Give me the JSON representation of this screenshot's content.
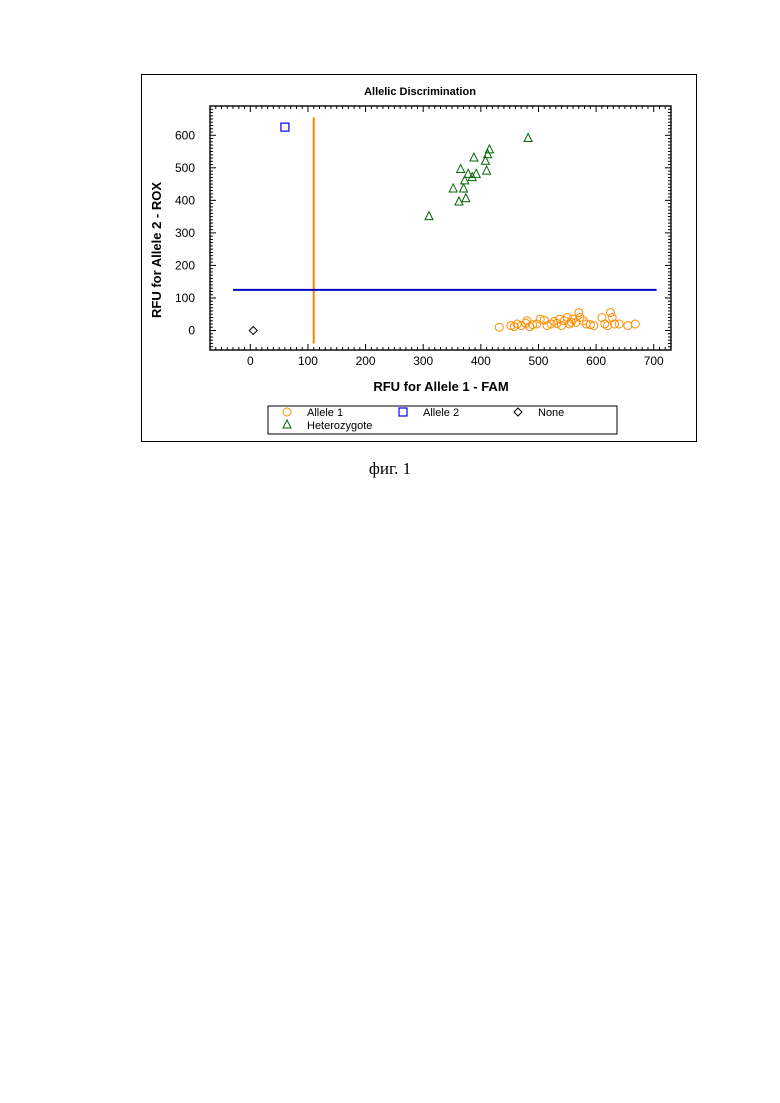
{
  "caption": "фиг. 1",
  "chart_data": {
    "type": "scatter",
    "title": "Allelic Discrimination",
    "xlabel": "RFU for Allele 1 - FAM",
    "ylabel": "RFU for Allele 2 - ROX",
    "xlim": [
      -70,
      730
    ],
    "ylim": [
      -60,
      690
    ],
    "xticks": [
      0,
      100,
      200,
      300,
      400,
      500,
      600,
      700
    ],
    "yticks": [
      0,
      100,
      200,
      300,
      400,
      500,
      600
    ],
    "grid": false,
    "legend_position": "bottom",
    "thresholds": [
      {
        "name": "threshold-vertical",
        "orientation": "vertical",
        "x": 110,
        "range": [
          -40,
          655
        ],
        "color": "#ff7f00"
      },
      {
        "name": "threshold-horizontal",
        "orientation": "horizontal",
        "y": 125,
        "range": [
          -30,
          705
        ],
        "color": "#0000c0"
      }
    ],
    "series": [
      {
        "name": "Allele 1",
        "marker": "circle",
        "color": "#ff8c00",
        "points": [
          [
            432,
            10
          ],
          [
            452,
            15
          ],
          [
            458,
            12
          ],
          [
            463,
            20
          ],
          [
            470,
            15
          ],
          [
            478,
            22
          ],
          [
            480,
            30
          ],
          [
            485,
            12
          ],
          [
            490,
            18
          ],
          [
            497,
            20
          ],
          [
            503,
            35
          ],
          [
            510,
            32
          ],
          [
            515,
            15
          ],
          [
            522,
            20
          ],
          [
            527,
            28
          ],
          [
            532,
            22
          ],
          [
            537,
            35
          ],
          [
            540,
            15
          ],
          [
            545,
            30
          ],
          [
            550,
            40
          ],
          [
            554,
            20
          ],
          [
            557,
            25
          ],
          [
            560,
            35
          ],
          [
            565,
            25
          ],
          [
            570,
            55
          ],
          [
            572,
            40
          ],
          [
            578,
            30
          ],
          [
            583,
            20
          ],
          [
            590,
            18
          ],
          [
            596,
            15
          ],
          [
            610,
            40
          ],
          [
            615,
            20
          ],
          [
            620,
            15
          ],
          [
            625,
            55
          ],
          [
            628,
            40
          ],
          [
            632,
            20
          ],
          [
            640,
            20
          ],
          [
            655,
            15
          ],
          [
            668,
            20
          ]
        ]
      },
      {
        "name": "Allele 2",
        "marker": "square",
        "color": "#0000ff",
        "points": [
          [
            60,
            625
          ]
        ]
      },
      {
        "name": "None",
        "marker": "diamond",
        "color": "#000000",
        "points": [
          [
            5,
            0
          ]
        ]
      },
      {
        "name": "Heterozygote",
        "marker": "triangle",
        "color": "#006400",
        "points": [
          [
            310,
            350
          ],
          [
            352,
            435
          ],
          [
            362,
            395
          ],
          [
            365,
            495
          ],
          [
            370,
            435
          ],
          [
            372,
            460
          ],
          [
            374,
            405
          ],
          [
            378,
            480
          ],
          [
            385,
            470
          ],
          [
            388,
            530
          ],
          [
            392,
            480
          ],
          [
            408,
            520
          ],
          [
            410,
            490
          ],
          [
            412,
            540
          ],
          [
            415,
            555
          ],
          [
            482,
            590
          ]
        ]
      }
    ]
  }
}
